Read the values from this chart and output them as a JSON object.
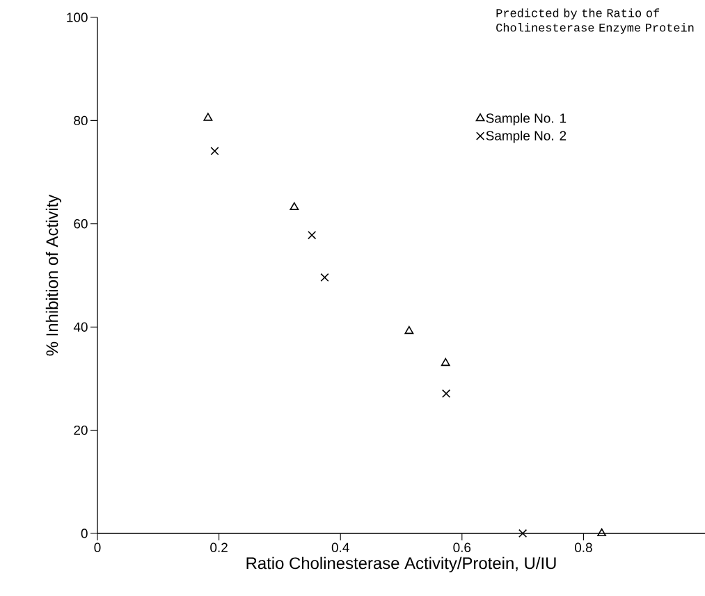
{
  "chart_data": {
    "type": "scatter",
    "title": "Predicted by the Ratio of Cholinesterase Enzyme Protein",
    "xlabel": "Ratio Cholinesterase Activity/Protein, U/IU",
    "ylabel": "% Inhibition of Activity",
    "xlim": [
      0,
      1.0
    ],
    "xticks": [
      0,
      0.2,
      0.4,
      0.6,
      0.8
    ],
    "ylim": [
      0,
      100
    ],
    "yticks": [
      0,
      20,
      40,
      60,
      80,
      100
    ],
    "legend": "top right",
    "grid": false,
    "series": [
      {
        "name": "Sample No. 1",
        "color": "#000000",
        "marker": "triangle",
        "x": [
          0.182,
          0.324,
          0.513,
          0.573,
          0.83
        ],
        "values": [
          80.5,
          63.2,
          39.2,
          33.0,
          0
        ]
      },
      {
        "name": "Sample No. 2",
        "color": "#000000",
        "marker": "cross",
        "x": [
          0.193,
          0.353,
          0.374,
          0.574,
          0.7
        ],
        "values": [
          74.1,
          57.8,
          49.6,
          27.1,
          0
        ]
      }
    ]
  }
}
